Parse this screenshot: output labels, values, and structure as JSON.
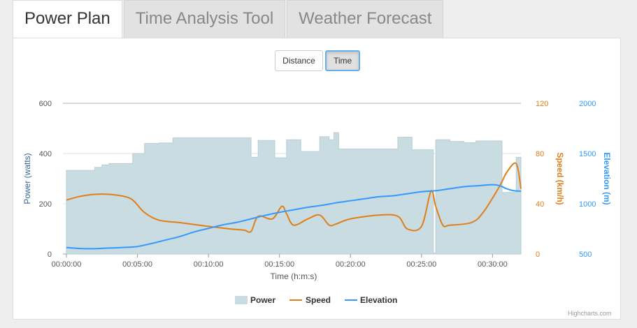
{
  "tabs": [
    {
      "label": "Power Plan",
      "active": true
    },
    {
      "label": "Time Analysis Tool",
      "active": false
    },
    {
      "label": "Weather Forecast",
      "active": false
    }
  ],
  "toggle": {
    "distance_label": "Distance",
    "time_label": "Time",
    "selected": "Time"
  },
  "credit": "Highcharts.com",
  "colors": {
    "power": "#c9dce2",
    "power_stroke": "#b7cdd4",
    "speed": "#e07f1a",
    "elevation": "#3399ff",
    "power_axis": "#336699",
    "speed_axis": "#e07f1a",
    "elevation_axis": "#3399ff"
  },
  "chart_data": {
    "type": "area",
    "xlabel": "Time (h:m:s)",
    "x_ticks": [
      "00:00:00",
      "00:05:00",
      "00:10:00",
      "00:15:00",
      "00:20:00",
      "00:25:00",
      "00:30:00"
    ],
    "xlim_seconds": [
      0,
      1920
    ],
    "axes": {
      "power": {
        "label": "Power (watts)",
        "ticks": [
          "0",
          "200",
          "400",
          "600"
        ],
        "ylim": [
          0,
          600
        ]
      },
      "speed": {
        "label": "Speed (km/h)",
        "ticks": [
          "0",
          "40",
          "80",
          "120"
        ],
        "ylim": [
          0,
          120
        ]
      },
      "elevation": {
        "label": "Elevation (m)",
        "ticks": [
          "500",
          "1000",
          "1500",
          "2000"
        ],
        "ylim": [
          500,
          2000
        ]
      }
    },
    "grid": true,
    "legend": [
      "Power",
      "Speed",
      "Elevation"
    ],
    "legend_position": "bottom-center",
    "series": [
      {
        "name": "Power",
        "type": "area-step",
        "axis": "power",
        "x": [
          "00:00:00",
          "00:02:00",
          "00:02:30",
          "00:03:00",
          "00:04:40",
          "00:05:30",
          "00:06:30",
          "00:07:30",
          "00:13:00",
          "00:13:30",
          "00:14:40",
          "00:15:30",
          "00:16:30",
          "00:17:50",
          "00:18:30",
          "00:18:50",
          "00:19:10",
          "00:23:20",
          "00:24:20",
          "00:25:50",
          "00:26:00",
          "00:27:00",
          "00:28:00",
          "00:28:50",
          "00:30:40",
          "00:31:40",
          "00:32:00"
        ],
        "values": [
          333,
          345,
          355,
          360,
          400,
          440,
          442,
          462,
          385,
          452,
          383,
          455,
          408,
          467,
          455,
          483,
          418,
          465,
          415,
          5,
          455,
          448,
          443,
          450,
          245,
          385,
          385
        ]
      },
      {
        "name": "Speed",
        "type": "line",
        "axis": "speed",
        "x": [
          "00:00:00",
          "00:01:00",
          "00:02:00",
          "00:03:00",
          "00:04:00",
          "00:04:40",
          "00:05:30",
          "00:06:30",
          "00:08:00",
          "00:10:00",
          "00:11:30",
          "00:12:30",
          "00:13:00",
          "00:13:30",
          "00:14:30",
          "00:15:10",
          "00:15:30",
          "00:16:00",
          "00:17:00",
          "00:17:50",
          "00:18:30",
          "00:19:00",
          "00:20:00",
          "00:22:00",
          "00:23:20",
          "00:24:00",
          "00:25:00",
          "00:25:40",
          "00:26:00",
          "00:26:30",
          "00:27:00",
          "00:28:30",
          "00:29:20",
          "00:30:30",
          "00:31:00",
          "00:31:40",
          "00:32:00"
        ],
        "values": [
          43,
          46,
          47.5,
          47.5,
          46,
          43,
          33,
          27,
          25,
          22,
          20,
          19,
          18,
          30,
          28,
          38,
          32,
          23,
          28,
          31,
          23,
          24,
          28,
          31,
          30,
          20,
          22,
          50,
          38,
          23,
          23,
          25,
          33,
          54,
          65,
          72,
          52
        ]
      },
      {
        "name": "Elevation",
        "type": "line",
        "axis": "elevation",
        "x": [
          "00:00:00",
          "00:01:00",
          "00:02:00",
          "00:03:00",
          "00:04:00",
          "00:05:00",
          "00:06:00",
          "00:07:00",
          "00:08:00",
          "00:09:00",
          "00:10:00",
          "00:11:00",
          "00:12:00",
          "00:13:00",
          "00:14:00",
          "00:15:00",
          "00:16:00",
          "00:17:00",
          "00:18:00",
          "00:19:00",
          "00:20:00",
          "00:21:00",
          "00:22:00",
          "00:23:00",
          "00:24:00",
          "00:25:00",
          "00:26:00",
          "00:27:00",
          "00:28:00",
          "00:29:00",
          "00:30:00",
          "00:30:30",
          "00:31:00",
          "00:31:30",
          "00:32:00"
        ],
        "values": [
          565,
          555,
          553,
          560,
          565,
          575,
          605,
          640,
          675,
          720,
          755,
          790,
          815,
          850,
          885,
          915,
          940,
          965,
          985,
          1010,
          1030,
          1050,
          1070,
          1080,
          1100,
          1120,
          1130,
          1150,
          1170,
          1180,
          1190,
          1180,
          1150,
          1130,
          1125
        ]
      }
    ]
  }
}
